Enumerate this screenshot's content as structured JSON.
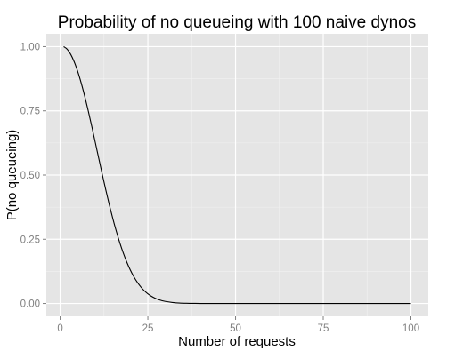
{
  "chart_data": {
    "type": "line",
    "title": "Probability of no queueing with 100 naive dynos",
    "xlabel": "Number of requests",
    "ylabel": "P(no queueing)",
    "xlim": [
      -3.95,
      104.95
    ],
    "ylim": [
      -0.05,
      1.05
    ],
    "x_ticks": [
      0,
      25,
      50,
      75,
      100
    ],
    "y_ticks": [
      0.0,
      0.25,
      0.5,
      0.75,
      1.0
    ],
    "x_tick_labels": [
      "0",
      "25",
      "50",
      "75",
      "100"
    ],
    "y_tick_labels": [
      "0.00",
      "0.25",
      "0.50",
      "0.75",
      "1.00"
    ],
    "grid": true,
    "background": "#e5e5e5",
    "grid_major_color": "#ffffff",
    "grid_minor_color": "#f2f2f2",
    "line_color": "#000000",
    "legend": "none",
    "series": [
      {
        "x": [
          1,
          2,
          3,
          4,
          5,
          6,
          7,
          8,
          9,
          10,
          11,
          12,
          13,
          14,
          15,
          16,
          17,
          18,
          19,
          20,
          21,
          22,
          23,
          24,
          25,
          26,
          27,
          28,
          29,
          30,
          32,
          34,
          36,
          38,
          40,
          45,
          50,
          60,
          70,
          80,
          90,
          100
        ],
        "y": [
          1.0,
          0.99,
          0.9702,
          0.9411,
          0.9035,
          0.8583,
          0.8068,
          0.7503,
          0.6903,
          0.6282,
          0.5653,
          0.5032,
          0.4428,
          0.3852,
          0.3313,
          0.2816,
          0.2365,
          0.1963,
          0.161,
          0.1304,
          0.1043,
          0.0824,
          0.0643,
          0.0495,
          0.0377,
          0.0283,
          0.021,
          0.0153,
          0.011,
          0.0079,
          0.0039,
          0.0018,
          0.0008,
          0.0003,
          0.0001,
          0.0,
          0.0,
          0.0,
          0.0,
          0.0,
          0.0,
          0.0
        ]
      }
    ]
  }
}
